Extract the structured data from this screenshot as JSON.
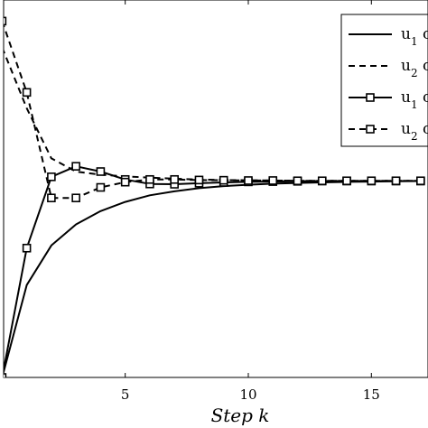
{
  "chart_data": {
    "type": "line",
    "xlabel": "Step k",
    "ylabel": "",
    "xlim": [
      0,
      17
    ],
    "ylim": [
      0,
      1.32
    ],
    "xticks": [
      "5",
      "10",
      "15"
    ],
    "xtick_values": [
      5,
      10,
      15
    ],
    "grid": false,
    "legend_placement": "top-right",
    "legend": [
      {
        "label_base": "u",
        "label_sub": "1",
        "label_rest": " c",
        "style": "solid"
      },
      {
        "label_base": "u",
        "label_sub": "2",
        "label_rest": " c",
        "style": "dashed"
      },
      {
        "label_base": "u",
        "label_sub": "1",
        "label_rest": " c",
        "style": "solid-square"
      },
      {
        "label_base": "u",
        "label_sub": "2",
        "label_rest": " c",
        "style": "dashed-square"
      }
    ],
    "series": [
      {
        "style": "solid",
        "points": [
          [
            0,
            0
          ],
          [
            1,
            0.35
          ],
          [
            2,
            0.5
          ],
          [
            3,
            0.58
          ],
          [
            4,
            0.63
          ],
          [
            5,
            0.665
          ],
          [
            6,
            0.69
          ],
          [
            7,
            0.705
          ],
          [
            8,
            0.717
          ],
          [
            9,
            0.725
          ],
          [
            10,
            0.73
          ],
          [
            11,
            0.734
          ],
          [
            12,
            0.737
          ],
          [
            13,
            0.739
          ],
          [
            14,
            0.741
          ],
          [
            15,
            0.742
          ],
          [
            16,
            0.743
          ],
          [
            17,
            0.744
          ]
        ]
      },
      {
        "style": "dashed",
        "points": [
          [
            0,
            1.25
          ],
          [
            1,
            1.02
          ],
          [
            2,
            0.83
          ],
          [
            3,
            0.78
          ],
          [
            4,
            0.768
          ],
          [
            5,
            0.762
          ],
          [
            6,
            0.757
          ],
          [
            7,
            0.753
          ],
          [
            8,
            0.75
          ],
          [
            9,
            0.748
          ],
          [
            10,
            0.747
          ],
          [
            11,
            0.746
          ],
          [
            12,
            0.745
          ],
          [
            13,
            0.745
          ],
          [
            14,
            0.745
          ],
          [
            15,
            0.745
          ],
          [
            16,
            0.745
          ],
          [
            17,
            0.745
          ]
        ]
      },
      {
        "style": "solid-square",
        "points": [
          [
            0,
            0
          ],
          [
            1,
            0.49
          ],
          [
            2,
            0.76
          ],
          [
            3,
            0.8
          ],
          [
            4,
            0.78
          ],
          [
            5,
            0.75
          ],
          [
            6,
            0.733
          ],
          [
            7,
            0.732
          ],
          [
            8,
            0.736
          ],
          [
            9,
            0.739
          ],
          [
            10,
            0.741
          ],
          [
            11,
            0.742
          ],
          [
            12,
            0.743
          ],
          [
            13,
            0.744
          ],
          [
            14,
            0.744
          ],
          [
            15,
            0.744
          ],
          [
            16,
            0.744
          ],
          [
            17,
            0.744
          ]
        ]
      },
      {
        "style": "dashed-square",
        "points": [
          [
            0,
            1.35
          ],
          [
            1,
            1.08
          ],
          [
            2,
            0.68
          ],
          [
            3,
            0.68
          ],
          [
            4,
            0.72
          ],
          [
            5,
            0.74
          ],
          [
            6,
            0.75
          ],
          [
            7,
            0.75
          ],
          [
            8,
            0.748
          ],
          [
            9,
            0.747
          ],
          [
            10,
            0.746
          ],
          [
            11,
            0.746
          ],
          [
            12,
            0.745
          ],
          [
            13,
            0.745
          ],
          [
            14,
            0.745
          ],
          [
            15,
            0.745
          ],
          [
            16,
            0.745
          ],
          [
            17,
            0.745
          ]
        ]
      }
    ]
  }
}
